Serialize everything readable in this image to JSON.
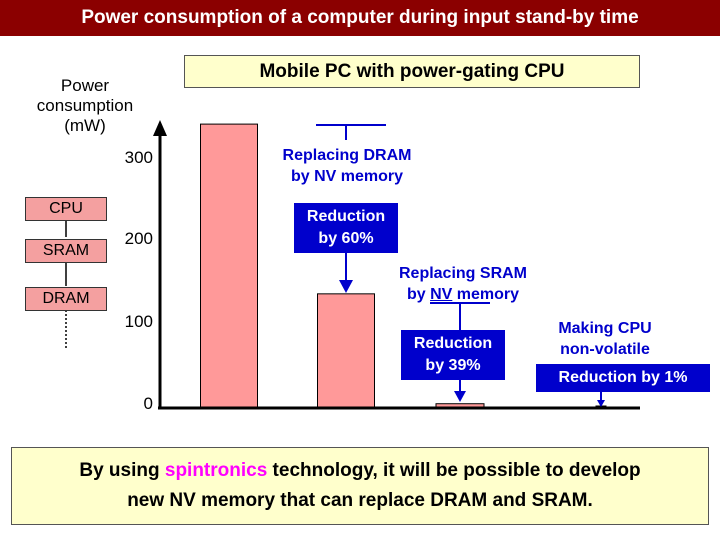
{
  "header": {
    "title": "Power consumption of a computer during input stand-by time"
  },
  "chart_data": {
    "type": "bar",
    "title": "Mobile PC with power-gating CPU",
    "ylabel_lines": [
      "Power",
      "consumption",
      "(mW)"
    ],
    "yticks": [
      "300",
      "200",
      "100",
      "0"
    ],
    "ylim": [
      0,
      345
    ],
    "categories": [
      "",
      "",
      "",
      ""
    ],
    "values": [
      345,
      138,
      4,
      0.4
    ],
    "bar_color": "#ff9999",
    "grid": false
  },
  "stack": {
    "items": [
      "CPU",
      "SRAM",
      "DRAM"
    ]
  },
  "annotations": {
    "dram_label_line1": "Replacing DRAM",
    "dram_label_line2": "by NV memory",
    "reduction1_line1": "Reduction",
    "reduction1_line2": "by 60%",
    "sram_label_line1": "Replacing SRAM",
    "sram_label_line2_prefix": "by ",
    "sram_label_line2_underlined": "NV",
    "sram_label_line2_suffix": " memory",
    "reduction2_line1": "Reduction",
    "reduction2_line2": "by 39%",
    "cpu_label_line1": "Making CPU",
    "cpu_label_line2": "non-volatile",
    "reduction3": "Reduction by 1%"
  },
  "footer": {
    "prefix": "By using ",
    "highlight": "spintronics",
    "suffix_line1": " technology, it will be possible to develop",
    "line2": "new NV memory that can replace DRAM and SRAM."
  },
  "colors": {
    "title_bg": "#8b0000",
    "accent_blue": "#0000cc",
    "highlight": "#ff00ff",
    "box_fill": "#ffffcc"
  }
}
